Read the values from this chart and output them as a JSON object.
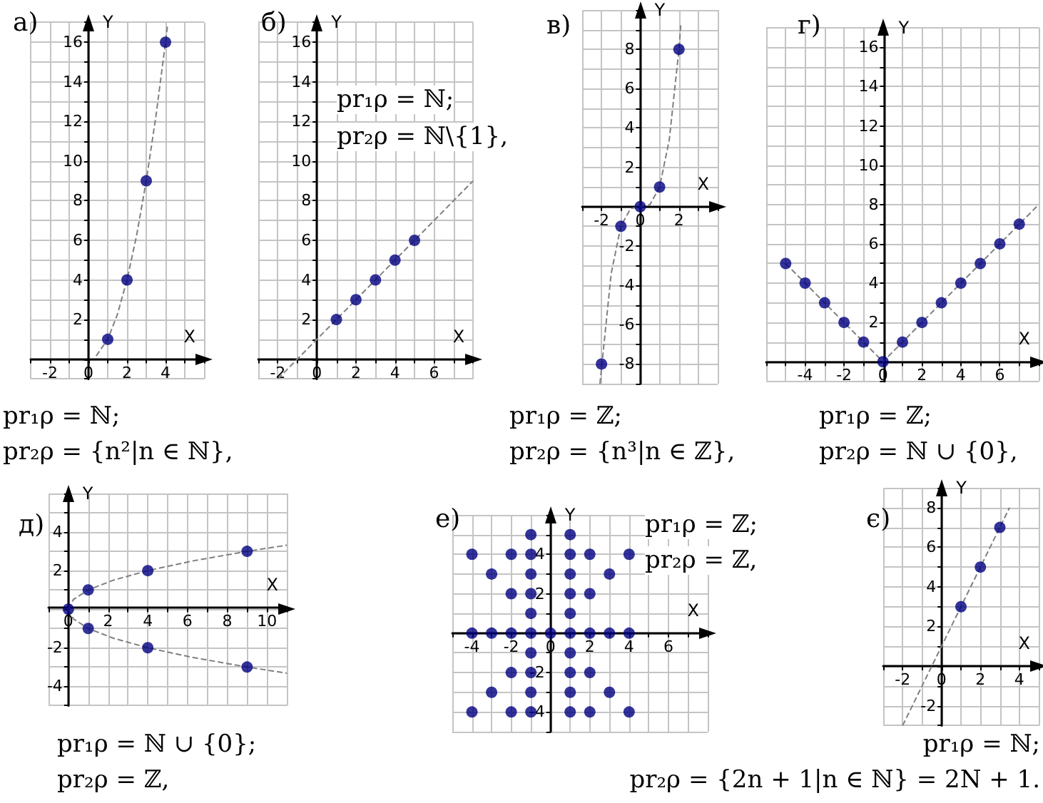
{
  "chart_data": [
    {
      "type": "scatter",
      "title": "а)",
      "xlabel": "X",
      "ylabel": "Y",
      "grid": true,
      "marker": "circle",
      "xlim": [
        -3,
        6
      ],
      "ylim": [
        -1,
        17
      ],
      "xticks": [
        {
          "value": -3,
          "label": null
        },
        {
          "value": -2,
          "label": "-2"
        },
        {
          "value": -1,
          "label": null
        },
        {
          "value": 0,
          "label": "0"
        },
        {
          "value": 1,
          "label": null
        },
        {
          "value": 2,
          "label": "2"
        },
        {
          "value": 3,
          "label": null
        },
        {
          "value": 4,
          "label": "4"
        },
        {
          "value": 5,
          "label": null
        },
        {
          "value": 6,
          "label": null
        }
      ],
      "yticks": [
        {
          "value": -1,
          "label": null
        },
        {
          "value": 0,
          "label": null
        },
        {
          "value": 1,
          "label": null
        },
        2,
        {
          "value": 3,
          "label": null
        },
        4,
        {
          "value": 5,
          "label": null
        },
        6,
        {
          "value": 7,
          "label": null
        },
        8,
        {
          "value": 9,
          "label": null
        },
        10,
        {
          "value": 11,
          "label": null
        },
        12,
        {
          "value": 13,
          "label": null
        },
        14,
        {
          "value": 15,
          "label": null
        },
        16,
        {
          "value": 17,
          "label": null
        }
      ],
      "series": [
        {
          "type": "line",
          "color": "#808080",
          "line_style": "dashed",
          "marker": "none",
          "x": [
            0.4,
            1,
            1.5,
            2,
            2.5,
            3,
            3.5,
            4,
            4.1
          ],
          "values": [
            0.16,
            1,
            2.25,
            4,
            6.25,
            9,
            12.25,
            16,
            16.8
          ]
        },
        {
          "type": "scatter",
          "color": "#000080",
          "x": [
            1,
            2,
            3,
            4
          ],
          "values": [
            1,
            4,
            9,
            16
          ]
        }
      ],
      "annotations": [
        "pr₁ρ = ℕ;",
        "pr₂ρ = {n²|n ∈ ℕ},"
      ]
    },
    {
      "type": "scatter",
      "title": "б)",
      "xlabel": "X",
      "ylabel": "Y",
      "grid": true,
      "marker": "circle",
      "xlim": [
        -3,
        8
      ],
      "ylim": [
        -1,
        17
      ],
      "xticks": [
        {
          "value": -3,
          "label": null
        },
        {
          "value": -2,
          "label": "-2"
        },
        {
          "value": -1,
          "label": null
        },
        {
          "value": 0,
          "label": "0"
        },
        {
          "value": 1,
          "label": null
        },
        {
          "value": 2,
          "label": "2"
        },
        {
          "value": 3,
          "label": null
        },
        {
          "value": 4,
          "label": "4"
        },
        {
          "value": 5,
          "label": null
        },
        {
          "value": 6,
          "label": "6"
        },
        {
          "value": 7,
          "label": null
        },
        {
          "value": 8,
          "label": null
        }
      ],
      "yticks": [
        {
          "value": -1,
          "label": null
        },
        {
          "value": 0,
          "label": null
        },
        {
          "value": 1,
          "label": null
        },
        2,
        {
          "value": 3,
          "label": null
        },
        4,
        {
          "value": 5,
          "label": null
        },
        6,
        {
          "value": 7,
          "label": null
        },
        8,
        {
          "value": 9,
          "label": null
        },
        10,
        {
          "value": 11,
          "label": null
        },
        12,
        {
          "value": 13,
          "label": null
        },
        14,
        {
          "value": 15,
          "label": null
        },
        16,
        {
          "value": 17,
          "label": null
        }
      ],
      "series": [
        {
          "type": "line",
          "color": "#808080",
          "line_style": "dashed",
          "marker": "none",
          "x": [
            -2,
            8
          ],
          "values": [
            -1,
            9
          ]
        },
        {
          "type": "scatter",
          "color": "#000080",
          "x": [
            1,
            2,
            3,
            4,
            5
          ],
          "values": [
            2,
            3,
            4,
            5,
            6
          ]
        }
      ],
      "annotations": [
        "pr₁ρ = ℕ;",
        "pr₂ρ = ℕ\\{1},"
      ]
    },
    {
      "type": "scatter",
      "title": "в)",
      "xlabel": "X",
      "ylabel": "Y",
      "grid": true,
      "marker": "circle",
      "xlim": [
        -3,
        4
      ],
      "ylim": [
        -9,
        10
      ],
      "xticks": [
        {
          "value": -3,
          "label": null
        },
        {
          "value": -2,
          "label": "-2"
        },
        {
          "value": -1,
          "label": null
        },
        {
          "value": 0,
          "label": "0"
        },
        {
          "value": 1,
          "label": null
        },
        {
          "value": 2,
          "label": "2"
        },
        {
          "value": 3,
          "label": null
        },
        {
          "value": 4,
          "label": null
        }
      ],
      "yticks": [
        {
          "value": -9,
          "label": null
        },
        -8,
        {
          "value": -7,
          "label": null
        },
        -6,
        {
          "value": -5,
          "label": null
        },
        -4,
        {
          "value": -3,
          "label": null
        },
        -2,
        {
          "value": -1,
          "label": null
        },
        {
          "value": 0,
          "label": null
        },
        {
          "value": 1,
          "label": null
        },
        2,
        {
          "value": 3,
          "label": null
        },
        4,
        {
          "value": 5,
          "label": null
        },
        6,
        {
          "value": 7,
          "label": null
        },
        8,
        {
          "value": 9,
          "label": null
        },
        {
          "value": 10,
          "label": null
        }
      ],
      "series": [
        {
          "type": "line",
          "color": "#808080",
          "line_style": "dashed",
          "marker": "none",
          "x": [
            -2.08,
            -1.5,
            -1,
            -0.5,
            0,
            0.5,
            1,
            1.5,
            2,
            2.1
          ],
          "values": [
            -9,
            -3.4,
            -1,
            -0.1,
            0,
            0.1,
            1,
            3.4,
            8,
            9.3
          ]
        },
        {
          "type": "scatter",
          "color": "#000080",
          "x": [
            -2,
            -1,
            0,
            1,
            2
          ],
          "values": [
            -8,
            -1,
            0,
            1,
            8
          ]
        }
      ],
      "annotations": [
        "pr₁ρ = ℤ;",
        "pr₂ρ = {n³|n ∈ ℤ},"
      ]
    },
    {
      "type": "scatter",
      "title": "г)",
      "xlabel": "X",
      "ylabel": "Y",
      "grid": true,
      "marker": "circle",
      "xlim": [
        -6,
        8
      ],
      "ylim": [
        -1,
        17
      ],
      "xticks": [
        {
          "value": -6,
          "label": null
        },
        {
          "value": -5,
          "label": null
        },
        {
          "value": -4,
          "label": "-4"
        },
        {
          "value": -3,
          "label": null
        },
        {
          "value": -2,
          "label": "-2"
        },
        {
          "value": -1,
          "label": null
        },
        {
          "value": 0,
          "label": "0"
        },
        {
          "value": 1,
          "label": null
        },
        {
          "value": 2,
          "label": "2"
        },
        {
          "value": 3,
          "label": null
        },
        {
          "value": 4,
          "label": "4"
        },
        {
          "value": 5,
          "label": null
        },
        {
          "value": 6,
          "label": "6"
        },
        {
          "value": 7,
          "label": null
        },
        {
          "value": 8,
          "label": null
        }
      ],
      "yticks": [
        {
          "value": -1,
          "label": null
        },
        {
          "value": 0,
          "label": null
        },
        {
          "value": 1,
          "label": null
        },
        2,
        {
          "value": 3,
          "label": null
        },
        4,
        {
          "value": 5,
          "label": null
        },
        6,
        {
          "value": 7,
          "label": null
        },
        8,
        {
          "value": 9,
          "label": null
        },
        10,
        {
          "value": 11,
          "label": null
        },
        12,
        {
          "value": 13,
          "label": null
        },
        14,
        {
          "value": 15,
          "label": null
        },
        16,
        {
          "value": 17,
          "label": null
        }
      ],
      "series": [
        {
          "type": "line",
          "color": "#808080",
          "line_style": "dashed",
          "marker": "none",
          "x": [
            -5,
            0,
            8
          ],
          "values": [
            5,
            0,
            8
          ]
        },
        {
          "type": "scatter",
          "color": "#000080",
          "x": [
            -5,
            -4,
            -3,
            -2,
            -1,
            0,
            1,
            2,
            3,
            4,
            5,
            6,
            7
          ],
          "values": [
            5,
            4,
            3,
            2,
            1,
            0,
            1,
            2,
            3,
            4,
            5,
            6,
            7
          ]
        }
      ],
      "annotations": [
        "pr₁ρ = ℤ;",
        "pr₂ρ = ℕ ∪ {0},"
      ]
    },
    {
      "type": "scatter",
      "title": "д)",
      "xlabel": "X",
      "ylabel": "Y",
      "grid": true,
      "marker": "circle",
      "xlim": [
        -1,
        11
      ],
      "ylim": [
        -5,
        6
      ],
      "xticks": [
        {
          "value": -1,
          "label": null
        },
        {
          "value": 0,
          "label": "0"
        },
        {
          "value": 1,
          "label": null
        },
        2,
        {
          "value": 3,
          "label": null
        },
        4,
        {
          "value": 5,
          "label": null
        },
        6,
        {
          "value": 7,
          "label": null
        },
        8,
        {
          "value": 9,
          "label": null
        },
        10,
        {
          "value": 11,
          "label": null
        }
      ],
      "yticks": [
        {
          "value": -5,
          "label": null
        },
        -4,
        {
          "value": -3,
          "label": null
        },
        -2,
        {
          "value": -1,
          "label": null
        },
        {
          "value": 0,
          "label": null
        },
        {
          "value": 1,
          "label": null
        },
        2,
        {
          "value": 3,
          "label": null
        },
        4,
        {
          "value": 5,
          "label": null
        },
        {
          "value": 6,
          "label": null
        }
      ],
      "series": [
        {
          "type": "line",
          "color": "#808080",
          "line_style": "dashed",
          "marker": "none",
          "x": [
            0,
            0.25,
            1,
            2.25,
            4,
            6.25,
            9,
            11
          ],
          "values": [
            0,
            0.5,
            1,
            1.5,
            2,
            2.5,
            3,
            3.32
          ]
        },
        {
          "type": "line",
          "color": "#808080",
          "line_style": "dashed",
          "marker": "none",
          "x": [
            0,
            0.25,
            1,
            2.25,
            4,
            6.25,
            9,
            11
          ],
          "values": [
            0,
            -0.5,
            -1,
            -1.5,
            -2,
            -2.5,
            -3,
            -3.32
          ]
        },
        {
          "type": "scatter",
          "color": "#000080",
          "x": [
            0,
            1,
            1,
            4,
            4,
            9,
            9
          ],
          "values": [
            0,
            1,
            -1,
            2,
            -2,
            3,
            -3
          ]
        }
      ],
      "annotations": [
        "pr₁ρ = ℕ ∪ {0};",
        "pr₂ρ = ℤ,"
      ]
    },
    {
      "type": "scatter",
      "title": "е)",
      "xlabel": "X",
      "ylabel": "Y",
      "grid": true,
      "marker": "circle",
      "xlim": [
        -5,
        8
      ],
      "ylim": [
        -5,
        6
      ],
      "xticks": [
        {
          "value": -5,
          "label": null
        },
        -4,
        {
          "value": -3,
          "label": null
        },
        -2,
        {
          "value": -1,
          "label": null
        },
        {
          "value": 0,
          "label": "0"
        },
        {
          "value": 1,
          "label": null
        },
        2,
        {
          "value": 3,
          "label": null
        },
        4,
        {
          "value": 5,
          "label": null
        },
        6,
        {
          "value": 7,
          "label": null
        },
        {
          "value": 8,
          "label": null
        }
      ],
      "yticks": [
        {
          "value": -5,
          "label": null
        },
        -4,
        {
          "value": -3,
          "label": null
        },
        -2,
        {
          "value": -1,
          "label": null
        },
        {
          "value": 0,
          "label": null
        },
        {
          "value": 1,
          "label": null
        },
        2,
        {
          "value": 3,
          "label": null
        },
        4,
        {
          "value": 5,
          "label": null
        },
        {
          "value": 6,
          "label": null
        }
      ],
      "series": [
        {
          "type": "scatter",
          "color": "#000080",
          "x": [
            -1,
            1,
            -4,
            -2,
            -1,
            1,
            2,
            4,
            -3,
            -1,
            1,
            3,
            -2,
            -1,
            1,
            2,
            -1,
            1,
            -4,
            -3,
            -2,
            -1,
            0,
            1,
            2,
            3,
            4,
            -1,
            1,
            -2,
            -1,
            1,
            2,
            -3,
            -1,
            1,
            3,
            -4,
            -2,
            -1,
            1,
            2,
            4
          ],
          "values": [
            5,
            5,
            4,
            4,
            4,
            4,
            4,
            4,
            3,
            3,
            3,
            3,
            2,
            2,
            2,
            2,
            1,
            1,
            0,
            0,
            0,
            0,
            0,
            0,
            0,
            0,
            0,
            -1,
            -1,
            -2,
            -2,
            -2,
            -2,
            -3,
            -3,
            -3,
            -3,
            -4,
            -4,
            -4,
            -4,
            -4,
            -4
          ]
        }
      ],
      "annotations": [
        "pr₁ρ = ℤ;",
        "pr₂ρ = ℤ,"
      ]
    },
    {
      "type": "scatter",
      "title": "є)",
      "xlabel": "X",
      "ylabel": "Y",
      "grid": true,
      "marker": "circle",
      "xlim": [
        -3,
        5
      ],
      "ylim": [
        -3,
        9
      ],
      "xticks": [
        {
          "value": -3,
          "label": null
        },
        -2,
        {
          "value": -1,
          "label": null
        },
        {
          "value": 0,
          "label": "0"
        },
        {
          "value": 1,
          "label": null
        },
        2,
        {
          "value": 3,
          "label": null
        },
        4,
        {
          "value": 5,
          "label": null
        }
      ],
      "yticks": [
        {
          "value": -3,
          "label": null
        },
        -2,
        {
          "value": -1,
          "label": null
        },
        {
          "value": 0,
          "label": null
        },
        {
          "value": 1,
          "label": null
        },
        2,
        {
          "value": 3,
          "label": null
        },
        4,
        {
          "value": 5,
          "label": null
        },
        6,
        {
          "value": 7,
          "label": null
        },
        8,
        {
          "value": 9,
          "label": null
        }
      ],
      "series": [
        {
          "type": "line",
          "color": "#808080",
          "line_style": "dashed",
          "marker": "none",
          "x": [
            -2,
            3.5
          ],
          "values": [
            -3,
            8
          ]
        },
        {
          "type": "scatter",
          "color": "#000080",
          "x": [
            1,
            2,
            3
          ],
          "values": [
            3,
            5,
            7
          ]
        }
      ],
      "annotations": [
        "pr₁ρ = ℕ;",
        "pr₂ρ = {2n + 1|n ∈ ℕ} = 2N + 1."
      ]
    }
  ]
}
